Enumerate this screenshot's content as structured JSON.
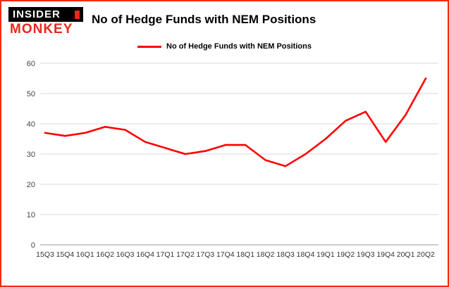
{
  "logo": {
    "line1": "INSIDER",
    "line2": "MONKEY"
  },
  "header": {
    "title": "No of Hedge Funds with NEM Positions"
  },
  "legend": {
    "label": "No of Hedge Funds with NEM Positions"
  },
  "colors": {
    "line": "#ff0000",
    "border": "#f42a10",
    "logo_red": "#e8291c"
  },
  "chart_data": {
    "type": "line",
    "title": "No of Hedge Funds with NEM Positions",
    "categories": [
      "15Q3",
      "15Q4",
      "16Q1",
      "16Q2",
      "16Q3",
      "16Q4",
      "17Q1",
      "17Q2",
      "17Q3",
      "17Q4",
      "18Q1",
      "18Q2",
      "18Q3",
      "18Q4",
      "19Q1",
      "19Q2",
      "19Q3",
      "19Q4",
      "20Q1",
      "20Q2"
    ],
    "values": [
      37,
      36,
      37,
      39,
      38,
      34,
      32,
      30,
      31,
      33,
      33,
      28,
      26,
      30,
      35,
      41,
      44,
      34,
      43,
      55
    ],
    "xlabel": "",
    "ylabel": "",
    "ylim": [
      0,
      60
    ],
    "ytick_step": 10,
    "grid": true,
    "legend_position": "top"
  }
}
